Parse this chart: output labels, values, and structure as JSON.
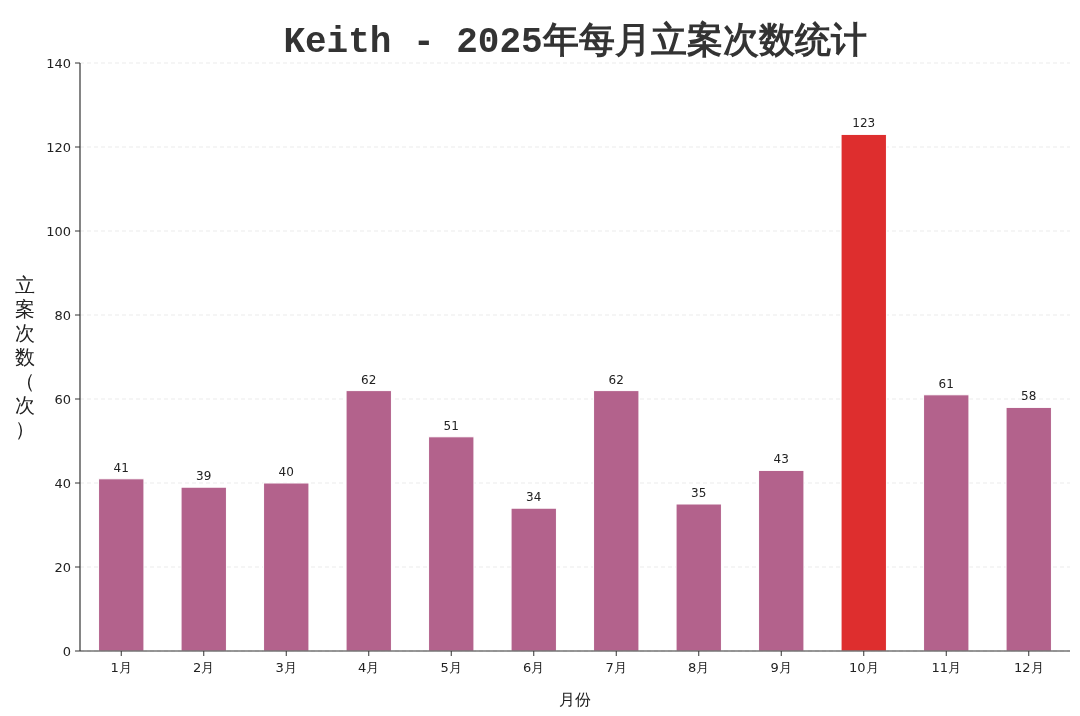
{
  "chart_data": {
    "type": "bar",
    "title": "Keith - 2025年每月立案次数统计",
    "xlabel": "月份",
    "ylabel": "立案次数（次）",
    "categories": [
      "1月",
      "2月",
      "3月",
      "4月",
      "5月",
      "6月",
      "7月",
      "8月",
      "9月",
      "10月",
      "11月",
      "12月"
    ],
    "values": [
      41,
      39,
      40,
      62,
      51,
      34,
      62,
      35,
      43,
      123,
      61,
      58
    ],
    "colors": [
      "#b3628c",
      "#b3628c",
      "#b3628c",
      "#b3628c",
      "#b3628c",
      "#b3628c",
      "#b3628c",
      "#b3628c",
      "#b3628c",
      "#de2e2e",
      "#b3628c",
      "#b3628c"
    ],
    "ylim": [
      0,
      140
    ],
    "yticks": [
      0,
      20,
      40,
      60,
      80,
      100,
      120,
      140
    ],
    "grid": "y",
    "data_labels": true
  }
}
